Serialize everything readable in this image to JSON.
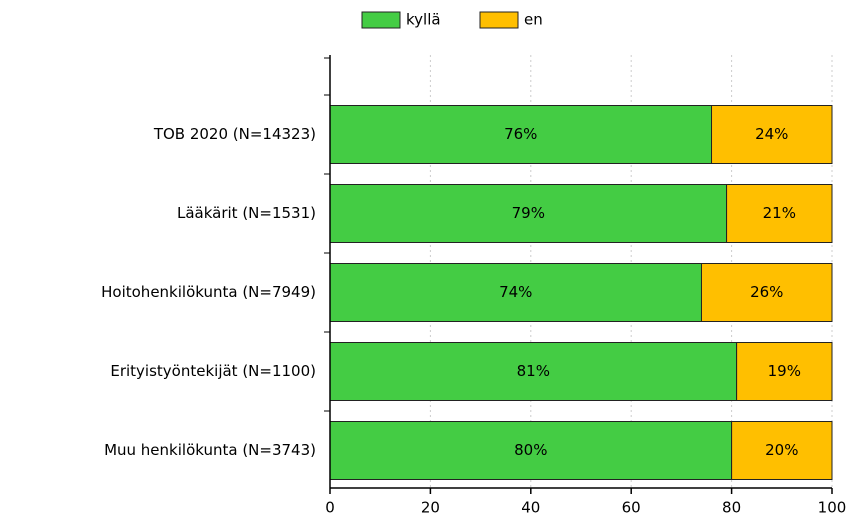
{
  "chart_data": {
    "type": "stacked_barh",
    "categories": [
      "TOB 2020 (N=14323)",
      "Lääkärit (N=1531)",
      "Hoitohenkilökunta (N=7949)",
      "Erityistyöntekijät (N=1100)",
      "Muu henkilökunta (N=3743)"
    ],
    "series": [
      {
        "name": "kyllä",
        "color": "#44cc44",
        "values": [
          76,
          79,
          74,
          81,
          80
        ],
        "value_labels": [
          "76%",
          "79%",
          "74%",
          "81%",
          "80%"
        ]
      },
      {
        "name": "en",
        "color": "#ffbf00",
        "values": [
          24,
          21,
          26,
          19,
          20
        ],
        "value_labels": [
          "24%",
          "21%",
          "26%",
          "19%",
          "20%"
        ]
      }
    ],
    "xlim": [
      0,
      100
    ],
    "xticks": [
      0,
      20,
      40,
      60,
      80,
      100
    ],
    "grid": true,
    "legend": "top"
  }
}
